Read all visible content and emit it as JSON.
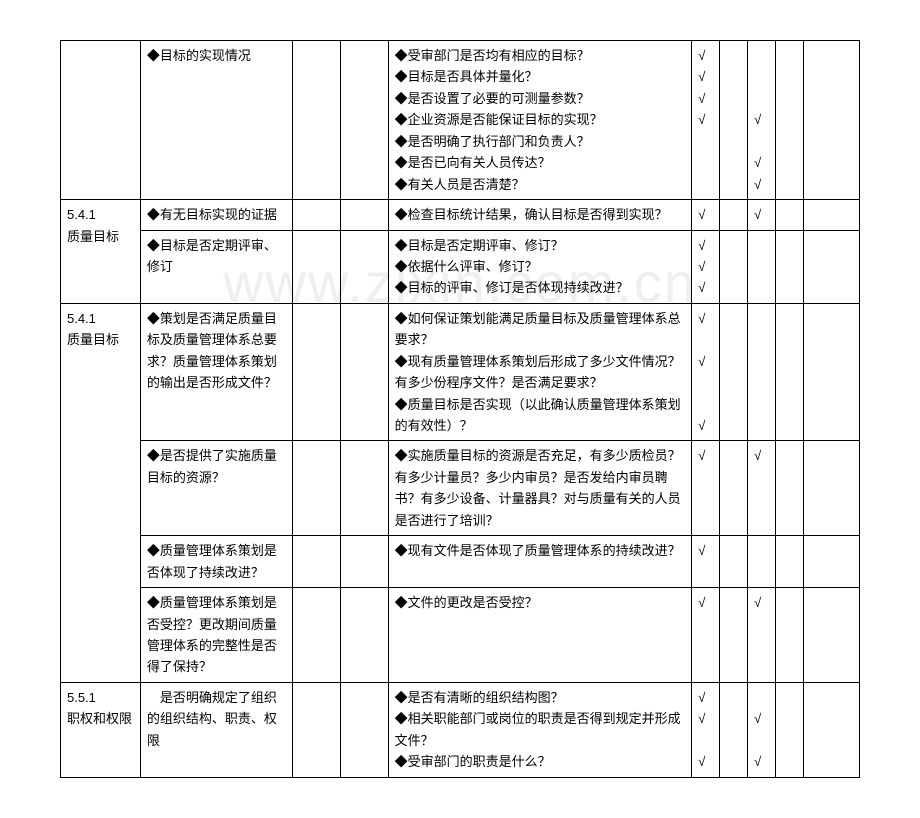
{
  "watermark": "www.zixin.com.cn",
  "check": "√",
  "rows": [
    {
      "c1": "",
      "c2": "◆目标的实现情况",
      "c5": "◆受审部门是否均有相应的目标？\n◆目标是否具体并量化？\n◆是否设置了必要的可测量参数？\n◆企业资源是否能保证目标的实现？\n◆是否明确了执行部门和负责人？\n◆是否已向有关人员传达？\n◆有关人员是否清楚？",
      "c6": "√\n√\n√\n√\n\n\n",
      "c7": "",
      "c8": "\n\n\n√\n\n√\n√",
      "c9": ""
    },
    {
      "merge1": true,
      "c1": "5.4.1\n质量目标",
      "sub": [
        {
          "c2": "◆有无目标实现的证据",
          "c5": "◆检查目标统计结果，确认目标是否得到实现？",
          "c6": "√",
          "c7": "",
          "c8": "√",
          "c9": ""
        },
        {
          "c2": "◆目标是否定期评审、修订",
          "c5": "◆目标是否定期评审、修订？\n◆依据什么评审、修订？\n◆目标的评审、修订是否体现持续改进？",
          "c6": "√\n√\n√",
          "c7": "",
          "c8": "",
          "c9": ""
        }
      ]
    },
    {
      "merge1": true,
      "c1": "5.4.1\n质量目标",
      "sub": [
        {
          "c2": "◆策划是否满足质量目标及质量管理体系总要求？质量管理体系策划的输出是否形成文件？",
          "c5": "◆如何保证策划能满足质量目标及质量管理体系总要求？\n◆现有质量管理体系策划后形成了多少文件情况？有多少份程序文件？是否满足要求？\n◆质量目标是否实现（以此确认质量管理体系策划的有效性）？",
          "c6": "√\n\n√\n\n\n√",
          "c7": "",
          "c8": "",
          "c9": ""
        },
        {
          "c2": "◆是否提供了实施质量目标的资源？",
          "c5": "◆实施质量目标的资源是否充足，有多少质检员？有多少计量员？多少内审员？是否发给内审员聘书？有多少设备、计量器具？对与质量有关的人员是否进行了培训？",
          "c6": "√",
          "c7": "",
          "c8": "√",
          "c9": ""
        },
        {
          "c2": "◆质量管理体系策划是否体现了持续改进？",
          "c5": "◆现有文件是否体现了质量管理体系的持续改进？",
          "c6": "√",
          "c7": "",
          "c8": "",
          "c9": ""
        },
        {
          "c2": "◆质量管理体系策划是否受控？更改期间质量管理体系的完整性是否得了保持？",
          "c5": "◆文件的更改是否受控？",
          "c6": "√",
          "c7": "",
          "c8": "√",
          "c9": ""
        }
      ]
    },
    {
      "c1": "5.5.1\n职权和权限",
      "c2": "　是否明确规定了组织的组织结构、职责、权限",
      "c5": "◆是否有清晰的组织结构图？\n◆相关职能部门或岗位的职责是否得到规定并形成文件？\n◆受审部门的职责是什么？",
      "c6": "√\n√\n\n√",
      "c7": "",
      "c8": "\n√\n\n√",
      "c9": ""
    }
  ]
}
